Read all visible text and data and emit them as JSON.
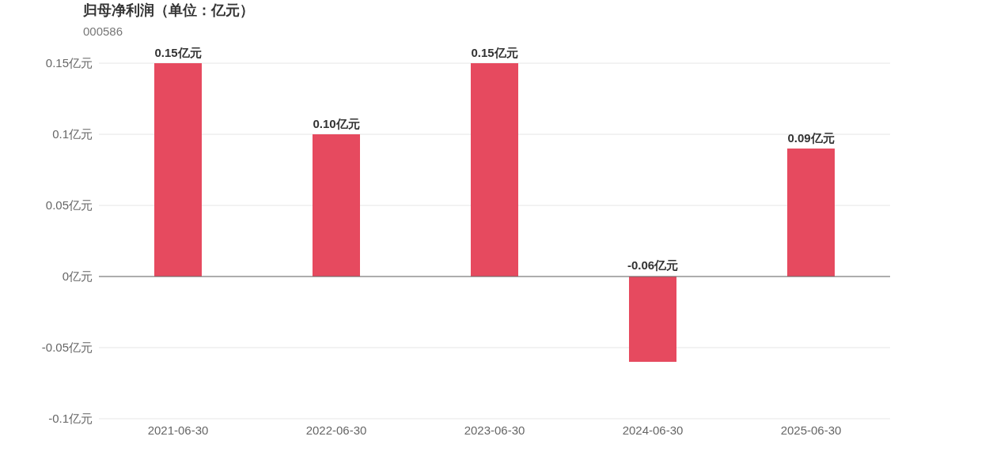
{
  "chart_data": {
    "type": "bar",
    "title": "归母净利润（单位：亿元）",
    "subtitle": "000586",
    "categories": [
      "2021-06-30",
      "2022-06-30",
      "2023-06-30",
      "2024-06-30",
      "2025-06-30"
    ],
    "values": [
      0.15,
      0.1,
      0.15,
      -0.06,
      0.09
    ],
    "value_labels": [
      "0.15亿元",
      "0.10亿元",
      "0.15亿元",
      "-0.06亿元",
      "0.09亿元"
    ],
    "color": "#e64a5f",
    "ylim": [
      -0.1,
      0.15
    ],
    "yticks": [
      {
        "value": -0.1,
        "label": "-0.1亿元"
      },
      {
        "value": -0.05,
        "label": "-0.05亿元"
      },
      {
        "value": 0,
        "label": "0亿元"
      },
      {
        "value": 0.05,
        "label": "0.05亿元"
      },
      {
        "value": 0.1,
        "label": "0.1亿元"
      },
      {
        "value": 0.15,
        "label": "0.15亿元"
      }
    ],
    "grid": "y"
  }
}
